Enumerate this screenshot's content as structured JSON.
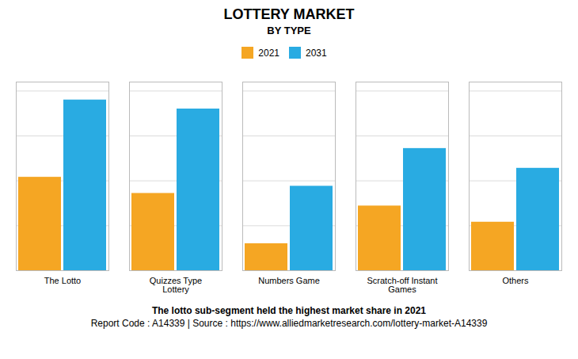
{
  "chart_data": {
    "type": "bar",
    "title": "LOTTERY MARKET",
    "subtitle": "BY TYPE",
    "categories": [
      "The Lotto",
      "Quizzes Type\nLottery",
      "Numbers Game",
      "Scratch-off Instant\nGames",
      "Others"
    ],
    "series": [
      {
        "name": "2021",
        "color": "#F5A623",
        "values": [
          0.52,
          0.43,
          0.15,
          0.36,
          0.27
        ]
      },
      {
        "name": "2031",
        "color": "#29ABE2",
        "values": [
          0.95,
          0.9,
          0.47,
          0.68,
          0.57
        ]
      }
    ],
    "ylim": [
      0,
      1.05
    ],
    "yticks": [
      0,
      0.25,
      0.5,
      0.75,
      1.0
    ],
    "grid": true,
    "tick_labels": "x",
    "legend": "top",
    "annotations": [
      "The lotto sub-segment held the highest market share in 2021",
      "Report Code : A14339  |  Source : https://www.alliedmarketresearch.com/lottery-market-A14339"
    ]
  }
}
